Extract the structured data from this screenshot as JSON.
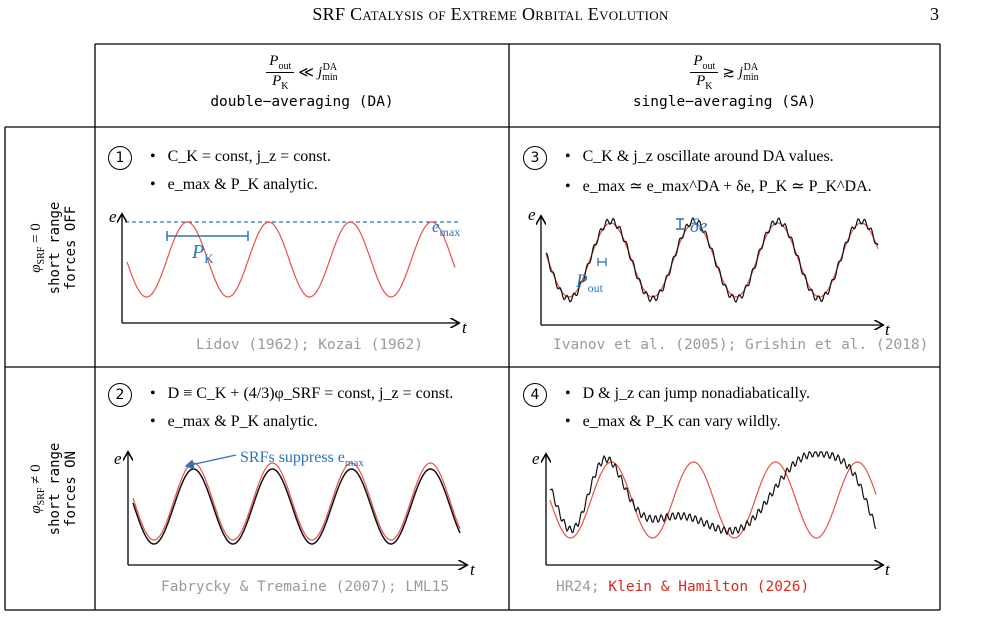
{
  "page_header": {
    "title": "SRF Catalysis of Extreme Orbital Evolution",
    "page_number": "3"
  },
  "columns": [
    {
      "condition_num": "P",
      "condition_num_sub": "out",
      "condition_den": "P",
      "condition_den_sub": "K",
      "relation": "≪",
      "j_label": "j",
      "j_sup": "DA",
      "j_sub": "min",
      "label": "double−averaging (DA)"
    },
    {
      "condition_num": "P",
      "condition_num_sub": "out",
      "condition_den": "P",
      "condition_den_sub": "K",
      "relation": "≳",
      "j_label": "j",
      "j_sup": "DA",
      "j_sub": "min",
      "label": "single−averaging (SA)"
    }
  ],
  "rows": [
    {
      "phi": "φ",
      "phi_sub": "SRF",
      "relation": "= 0",
      "label_line1": "short range",
      "label_line2": "forces OFF"
    },
    {
      "phi": "φ",
      "phi_sub": "SRF",
      "relation": "≠ 0",
      "label_line1": "short range",
      "label_line2": "forces ON"
    }
  ],
  "cells": [
    {
      "number": "1",
      "bullet1": "C_K = const,  j_z = const.",
      "bullet2": "e_max & P_K analytic.",
      "citation": "Lidov (1962); Kozai (1962)",
      "plot_labels": {
        "y": "e",
        "x": "t",
        "emax": "e",
        "emax_sub": "max",
        "period": "P",
        "period_sub": "K"
      }
    },
    {
      "number": "3",
      "bullet1": "C_K & j_z oscillate around DA values.",
      "bullet2": "e_max ≃ e_max^DA + δe,   P_K ≃ P_K^DA.",
      "citation": "Ivanov et al. (2005); Grishin et al. (2018)",
      "plot_labels": {
        "y": "e",
        "x": "t",
        "delta": "δe",
        "pout": "P",
        "pout_sub": "out"
      }
    },
    {
      "number": "2",
      "bullet1": "D ≡ C_K + (4/3)φ_SRF = const, j_z = const.",
      "bullet2": "e_max & P_K analytic.",
      "citation": "Fabrycky & Tremaine (2007); LML15",
      "plot_labels": {
        "y": "e",
        "x": "t",
        "annotation": "SRFs suppress e",
        "annotation_sub": "max"
      }
    },
    {
      "number": "4",
      "bullet1": "D & j_z can jump nonadiabatically.",
      "bullet2": "e_max & P_K can vary wildly.",
      "citation_gray": "HR24; ",
      "citation_red": "Klein & Hamilton (2026)",
      "plot_labels": {
        "y": "e",
        "x": "t"
      }
    }
  ],
  "colors": {
    "red_curve": "#e8524a",
    "black_curve": "#111111",
    "blue": "#2b73b8",
    "gray_text": "#9a9a9a",
    "red_text": "#d62a1e"
  }
}
